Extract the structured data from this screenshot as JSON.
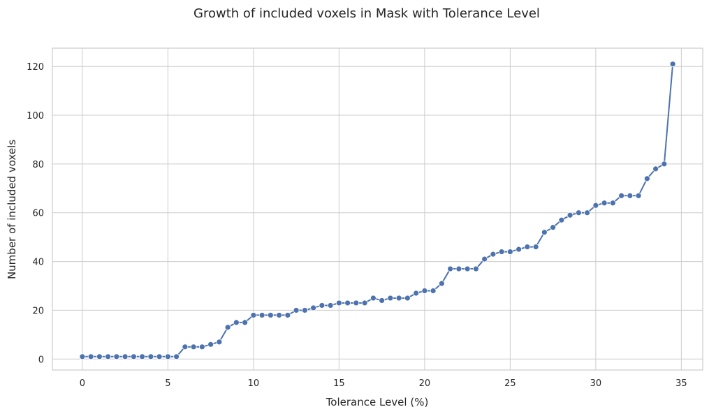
{
  "chart_data": {
    "type": "line",
    "title": "Growth of included voxels in Mask with Tolerance Level",
    "xlabel": "Tolerance Level (%)",
    "ylabel": "Number of included voxels",
    "xlim": [
      -1.75,
      36.25
    ],
    "ylim": [
      -4.5,
      127.5
    ],
    "xticks": [
      0,
      5,
      10,
      15,
      20,
      25,
      30,
      35
    ],
    "yticks": [
      0,
      20,
      40,
      60,
      80,
      100,
      120
    ],
    "grid": true,
    "color": "#4c72b0",
    "series": [
      {
        "x": [
          0,
          0.5,
          1,
          1.5,
          2,
          2.5,
          3,
          3.5,
          4,
          4.5,
          5,
          5.5,
          6,
          6.5,
          7,
          7.5,
          8,
          8.5,
          9,
          9.5,
          10,
          10.5,
          11,
          11.5,
          12,
          12.5,
          13,
          13.5,
          14,
          14.5,
          15,
          15.5,
          16,
          16.5,
          17,
          17.5,
          18,
          18.5,
          19,
          19.5,
          20,
          20.5,
          21,
          21.5,
          22,
          22.5,
          23,
          23.5,
          24,
          24.5,
          25,
          25.5,
          26,
          26.5,
          27,
          27.5,
          28,
          28.5,
          29,
          29.5,
          30,
          30.5,
          31,
          31.5,
          32,
          32.5,
          33,
          33.5,
          34,
          34.5
        ],
        "y": [
          1,
          1,
          1,
          1,
          1,
          1,
          1,
          1,
          1,
          1,
          1,
          1,
          5,
          5,
          5,
          6,
          7,
          13,
          15,
          15,
          18,
          18,
          18,
          18,
          18,
          20,
          20,
          21,
          22,
          22,
          23,
          23,
          23,
          23,
          25,
          24,
          25,
          25,
          25,
          27,
          28,
          28,
          31,
          37,
          37,
          37,
          37,
          41,
          43,
          44,
          44,
          45,
          46,
          46,
          52,
          54,
          57,
          59,
          60,
          60,
          63,
          64,
          64,
          67,
          67,
          67,
          74,
          78,
          80,
          121
        ]
      }
    ]
  }
}
